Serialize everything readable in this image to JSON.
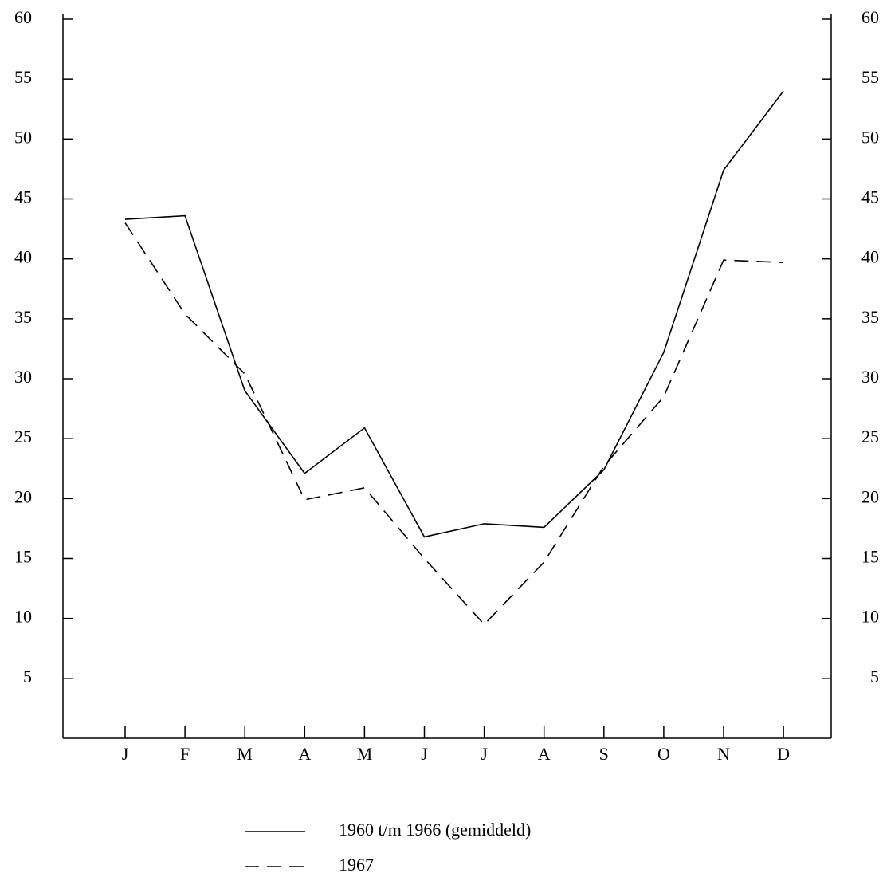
{
  "chart_data": {
    "type": "line",
    "categories": [
      "J",
      "F",
      "M",
      "A",
      "M",
      "J",
      "J",
      "A",
      "S",
      "O",
      "N",
      "D"
    ],
    "series": [
      {
        "name": "1960 t/m 1966 (gemiddeld)",
        "color": "#000000",
        "line_style": "solid",
        "values": [
          43.3,
          43.6,
          29.0,
          22.1,
          25.9,
          16.8,
          17.9,
          17.6,
          22.4,
          32.2,
          47.4,
          54.0
        ]
      },
      {
        "name": "1967",
        "color": "#000000",
        "line_style": "dashed",
        "values": [
          43.0,
          35.4,
          30.4,
          19.9,
          20.9,
          15.0,
          9.5,
          14.7,
          22.7,
          28.5,
          39.9,
          39.7
        ]
      }
    ],
    "ylim": [
      0,
      60
    ],
    "yticks": [
      5,
      10,
      15,
      20,
      25,
      30,
      35,
      40,
      45,
      50,
      55,
      60
    ],
    "y2lim": [
      0,
      60
    ],
    "y2ticks": [
      5,
      10,
      15,
      20,
      25,
      30,
      35,
      40,
      45,
      50,
      55,
      60
    ],
    "grid": false
  }
}
